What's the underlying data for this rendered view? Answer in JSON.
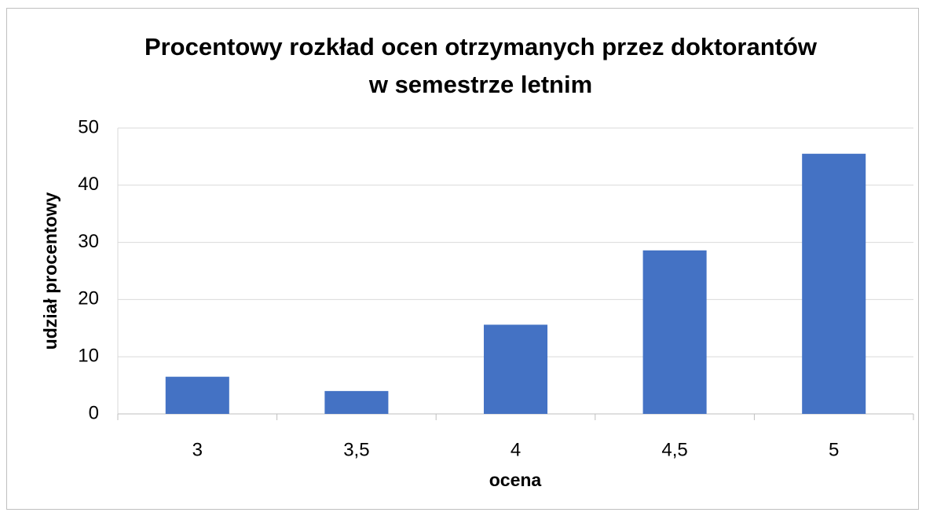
{
  "chart_data": {
    "type": "bar",
    "title": [
      "Procentowy rozkład ocen otrzymanych przez doktorantów",
      "w semestrze letnim"
    ],
    "x_label": "ocena",
    "y_label": "udział procentowy",
    "categories": [
      "3",
      "3,5",
      "4",
      "4,5",
      "5"
    ],
    "values": [
      6.5,
      4,
      15.6,
      28.6,
      45.5
    ],
    "color": "#4472c4",
    "ylim": [
      0,
      50
    ],
    "yticks": [
      0,
      10,
      20,
      30,
      40,
      50
    ],
    "grid": true
  }
}
